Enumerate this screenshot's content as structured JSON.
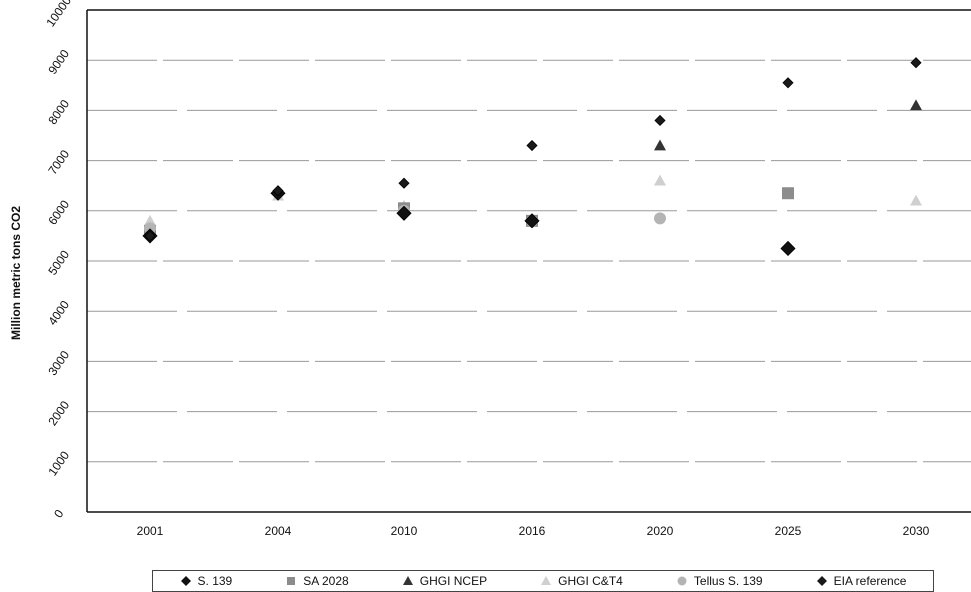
{
  "chart_data": {
    "type": "scatter",
    "title": "",
    "xlabel": "",
    "ylabel": "Million metric tons CO2",
    "categories": [
      "2001",
      "2004",
      "2010",
      "2016",
      "2020",
      "2025",
      "2030"
    ],
    "ylim": [
      0,
      10000
    ],
    "yticks": [
      0,
      1000,
      2000,
      3000,
      4000,
      5000,
      6000,
      7000,
      8000,
      9000,
      10000
    ],
    "grid": true,
    "legend_position": "bottom",
    "series": [
      {
        "name": "S. 139",
        "marker": "diamond",
        "color": "#111111",
        "values": [
          5500,
          6350,
          5950,
          5800,
          null,
          5250,
          null
        ]
      },
      {
        "name": "SA 2028",
        "marker": "square",
        "color": "#8c8c8c",
        "values": [
          5600,
          null,
          6050,
          5800,
          null,
          6350,
          null
        ]
      },
      {
        "name": "GHGI NCEP",
        "marker": "triangle",
        "color": "#333333",
        "values": [
          null,
          null,
          null,
          null,
          7300,
          null,
          8100
        ]
      },
      {
        "name": "GHGI C&T4",
        "marker": "triangle",
        "color": "#cfcfcf",
        "values": [
          5800,
          6300,
          6100,
          5800,
          6600,
          null,
          6200
        ]
      },
      {
        "name": "Tellus S. 139",
        "marker": "circle",
        "color": "#b4b4b4",
        "values": [
          5650,
          null,
          6000,
          5800,
          5850,
          null,
          null
        ]
      },
      {
        "name": "EIA reference",
        "marker": "diamond",
        "color": "#1a1a1a",
        "values": [
          5500,
          6400,
          6550,
          7300,
          7800,
          8550,
          8950
        ]
      }
    ]
  }
}
